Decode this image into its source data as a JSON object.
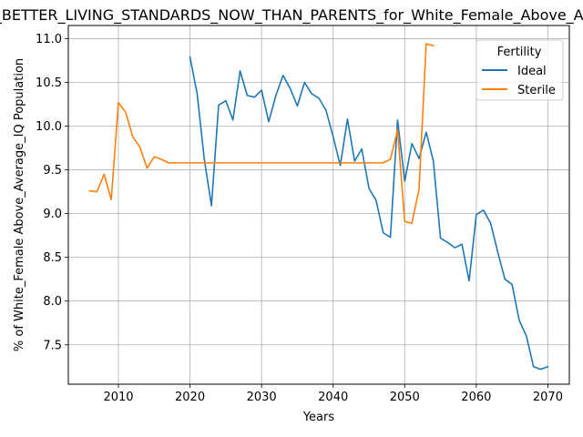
{
  "chart_data": {
    "type": "line",
    "title": "in_BETTER_LIVING_STANDARDS_NOW_THAN_PARENTS_for_White_Female_Above_Average_IQ",
    "xlabel": "Years",
    "ylabel": "% of White_Female Above_Average_IQ Population",
    "xlim": [
      2003,
      2073
    ],
    "ylim": [
      7.05,
      11.15
    ],
    "xticks": [
      2010,
      2020,
      2030,
      2040,
      2050,
      2060,
      2070
    ],
    "yticks": [
      7.5,
      8.0,
      8.5,
      9.0,
      9.5,
      10.0,
      10.5,
      11.0
    ],
    "xtick_labels": [
      "2010",
      "2020",
      "2030",
      "2040",
      "2050",
      "2060",
      "2070"
    ],
    "ytick_labels": [
      "7.5",
      "8.0",
      "8.5",
      "9.0",
      "9.5",
      "10.0",
      "10.5",
      "11.0"
    ],
    "grid": true,
    "legend": {
      "title": "Fertility",
      "position": "top-right"
    },
    "series": [
      {
        "name": "Ideal",
        "color": "#1f77b4",
        "x": [
          2020,
          2021,
          2022,
          2023,
          2024,
          2025,
          2026,
          2027,
          2028,
          2029,
          2030,
          2031,
          2032,
          2033,
          2034,
          2035,
          2036,
          2037,
          2038,
          2039,
          2040,
          2041,
          2042,
          2043,
          2044,
          2045,
          2046,
          2047,
          2048,
          2049,
          2050,
          2051,
          2052,
          2053,
          2054,
          2055,
          2056,
          2057,
          2058,
          2059,
          2060,
          2061,
          2062,
          2063,
          2064,
          2065,
          2066,
          2067,
          2068,
          2069,
          2070
        ],
        "y": [
          10.79,
          10.37,
          9.62,
          9.09,
          10.24,
          10.29,
          10.07,
          10.63,
          10.35,
          10.33,
          10.41,
          10.05,
          10.35,
          10.58,
          10.43,
          10.23,
          10.5,
          10.37,
          10.32,
          10.18,
          9.88,
          9.55,
          10.08,
          9.6,
          9.74,
          9.29,
          9.15,
          8.78,
          8.73,
          10.07,
          9.37,
          9.8,
          9.63,
          9.93,
          9.6,
          8.72,
          8.67,
          8.61,
          8.65,
          8.23,
          8.99,
          9.04,
          8.89,
          8.56,
          8.25,
          8.19,
          7.78,
          7.6,
          7.25,
          7.22,
          7.25
        ]
      },
      {
        "name": "Sterile",
        "color": "#ff7f0e",
        "x": [
          2006,
          2007,
          2008,
          2009,
          2010,
          2011,
          2012,
          2013,
          2014,
          2015,
          2016,
          2017,
          2018,
          2019,
          2020,
          2021,
          2022,
          2023,
          2024,
          2025,
          2026,
          2027,
          2028,
          2029,
          2030,
          2031,
          2032,
          2033,
          2034,
          2035,
          2036,
          2037,
          2038,
          2039,
          2040,
          2041,
          2042,
          2043,
          2044,
          2045,
          2046,
          2047,
          2048,
          2049,
          2050,
          2051,
          2052,
          2053,
          2054
        ],
        "y": [
          9.26,
          9.25,
          9.45,
          9.16,
          10.27,
          10.16,
          9.88,
          9.76,
          9.52,
          9.65,
          9.62,
          9.58,
          9.58,
          9.58,
          9.58,
          9.58,
          9.58,
          9.58,
          9.58,
          9.58,
          9.58,
          9.58,
          9.58,
          9.58,
          9.58,
          9.58,
          9.58,
          9.58,
          9.58,
          9.58,
          9.58,
          9.58,
          9.58,
          9.58,
          9.58,
          9.58,
          9.58,
          9.58,
          9.58,
          9.58,
          9.58,
          9.58,
          9.62,
          9.96,
          8.91,
          8.89,
          9.28,
          10.94,
          10.92
        ]
      }
    ]
  }
}
